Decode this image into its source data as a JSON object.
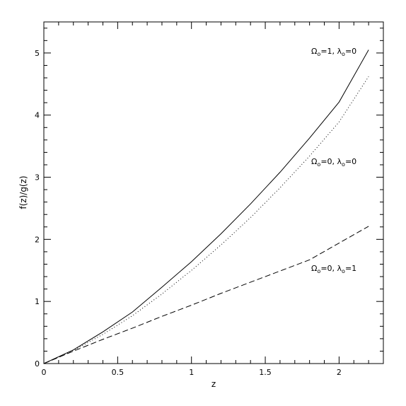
{
  "chart_data": {
    "type": "line",
    "title": "",
    "xlabel": "z",
    "ylabel": "f(z)/g(z)",
    "xlim": [
      0,
      2.3
    ],
    "ylim": [
      0,
      5.5
    ],
    "xticks": [
      0,
      0.5,
      1,
      1.5,
      2
    ],
    "xtick_labels": [
      "0",
      "0.5",
      "1",
      "1.5",
      "2"
    ],
    "yticks": [
      0,
      1,
      2,
      3,
      4,
      5
    ],
    "ytick_labels": [
      "0",
      "1",
      "2",
      "3",
      "4",
      "5"
    ],
    "grid": false,
    "legend": "inline labels at right end of curves",
    "series": [
      {
        "label_omega": "Ω",
        "label_omega_sub": "o",
        "label_omega_val": "=1, ",
        "label_lambda": "λ",
        "label_lambda_sub": "o",
        "label_lambda_val": "=0",
        "style": "solid",
        "x": [
          0,
          0.2,
          0.4,
          0.6,
          0.8,
          1.0,
          1.2,
          1.4,
          1.6,
          1.8,
          2.0,
          2.2
        ],
        "y": [
          0,
          0.22,
          0.51,
          0.83,
          1.23,
          1.64,
          2.09,
          2.57,
          3.08,
          3.63,
          4.21,
          5.05
        ]
      },
      {
        "label_omega": "Ω",
        "label_omega_sub": "o",
        "label_omega_val": "=0, ",
        "label_lambda": "λ",
        "label_lambda_sub": "o",
        "label_lambda_val": "=0",
        "style": "dotted",
        "x": [
          0,
          0.2,
          0.4,
          0.6,
          0.8,
          1.0,
          1.2,
          1.4,
          1.6,
          1.8,
          2.0,
          2.2
        ],
        "y": [
          0,
          0.21,
          0.47,
          0.77,
          1.12,
          1.5,
          1.91,
          2.35,
          2.83,
          3.34,
          3.89,
          4.62
        ]
      },
      {
        "label_omega": "Ω",
        "label_omega_sub": "o",
        "label_omega_val": "=0, ",
        "label_lambda": "λ",
        "label_lambda_sub": "o",
        "label_lambda_val": "=1",
        "style": "dashed",
        "x": [
          0,
          0.2,
          0.4,
          0.6,
          0.8,
          1.0,
          1.2,
          1.4,
          1.6,
          1.8,
          2.0,
          2.2
        ],
        "y": [
          0,
          0.2,
          0.39,
          0.57,
          0.76,
          0.94,
          1.13,
          1.31,
          1.49,
          1.67,
          1.94,
          2.21
        ]
      }
    ]
  }
}
